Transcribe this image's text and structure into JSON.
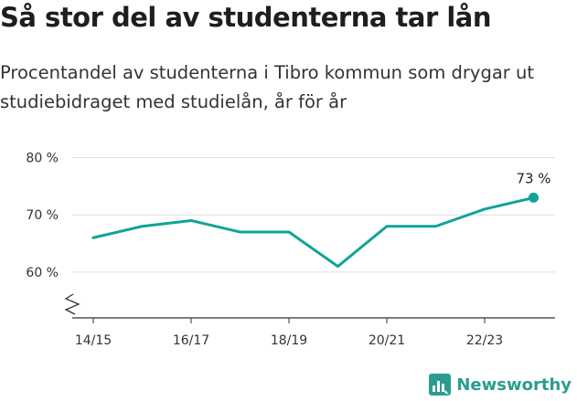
{
  "header": {
    "title": "Så stor del av studenterna tar lån",
    "subtitle": "Procentandel av studenterna i Tibro kommun som drygar ut studiebidraget med studielån, år för år"
  },
  "chart_data": {
    "type": "line",
    "title": "Så stor del av studenterna tar lån",
    "subtitle": "Procentandel av studenterna i Tibro kommun som drygar ut studiebidraget med studielån, år för år",
    "xlabel": "",
    "ylabel": "",
    "x": [
      "14/15",
      "15/16",
      "16/17",
      "17/18",
      "18/19",
      "19/20",
      "20/21",
      "21/22",
      "22/23",
      "23/24"
    ],
    "x_tick_labels": [
      "14/15",
      "16/17",
      "18/19",
      "20/21",
      "22/23"
    ],
    "series": [
      {
        "values": [
          66,
          68,
          69,
          67,
          67,
          61,
          68,
          68,
          71,
          73
        ]
      }
    ],
    "ylim": [
      52,
      82
    ],
    "y_ticks": [
      60,
      70,
      80
    ],
    "y_tick_labels": [
      "60 %",
      "70 %",
      "80 %"
    ],
    "end_label": "73 %",
    "grid": true,
    "axis_break": true,
    "line_color": "#11a397",
    "grid_color": "#dddddd"
  },
  "brand": {
    "name": "Newsworthy",
    "color": "#2a9d8f"
  }
}
